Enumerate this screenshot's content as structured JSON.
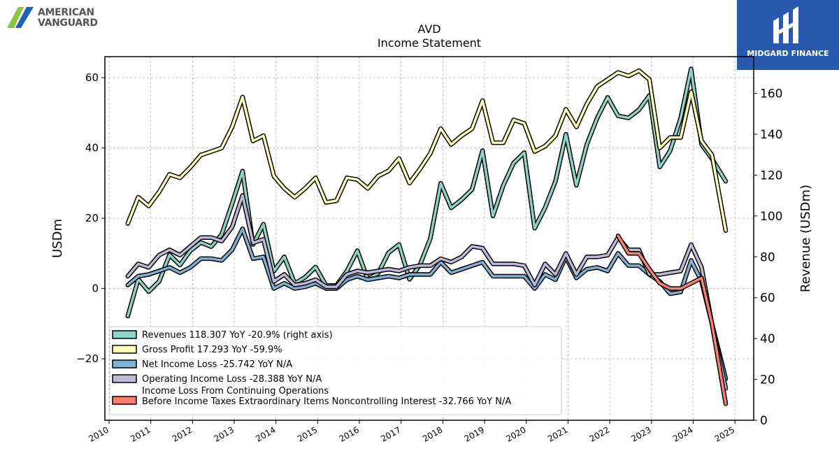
{
  "brand_left": {
    "line1": "AMERICAN",
    "line2": "VANGUARD"
  },
  "brand_right": {
    "name": "MIDGARD FINANCE"
  },
  "chart_data": {
    "type": "line",
    "title": "AVD",
    "subtitle": "Income Statement",
    "ylabel": "USDm",
    "ylabel_right": "Revenue (USDm)",
    "xlim": [
      2009.9,
      2025.45
    ],
    "ylim": [
      -37.5,
      66
    ],
    "ylim_right": [
      0,
      178
    ],
    "x_ticks": [
      "2010",
      "2011",
      "2012",
      "2013",
      "2014",
      "2015",
      "2016",
      "2017",
      "2018",
      "2019",
      "2020",
      "2021",
      "2022",
      "2023",
      "2024",
      "2025"
    ],
    "y_ticks": [
      -20,
      0,
      20,
      40,
      60
    ],
    "y_ticks_right": [
      0,
      20,
      40,
      60,
      80,
      100,
      120,
      140,
      160
    ],
    "grid": true,
    "legend_position": "lower-left",
    "series": [
      {
        "name": "Revenues  118.307 YoY -20.9% (right axis)",
        "axis": "right",
        "color": "#8dd3c7",
        "x": [
          2010.45,
          2010.7,
          2010.95,
          2011.2,
          2011.45,
          2011.7,
          2011.95,
          2012.2,
          2012.45,
          2012.7,
          2012.95,
          2013.2,
          2013.45,
          2013.7,
          2013.95,
          2014.2,
          2014.45,
          2014.7,
          2014.95,
          2015.2,
          2015.45,
          2015.7,
          2015.95,
          2016.2,
          2016.45,
          2016.7,
          2016.95,
          2017.2,
          2017.45,
          2017.7,
          2017.95,
          2018.2,
          2018.45,
          2018.7,
          2018.95,
          2019.2,
          2019.45,
          2019.7,
          2019.95,
          2020.2,
          2020.45,
          2020.7,
          2020.95,
          2021.2,
          2021.45,
          2021.7,
          2021.95,
          2022.2,
          2022.45,
          2022.7,
          2022.95,
          2023.2,
          2023.45,
          2023.7,
          2023.95,
          2024.2,
          2024.45,
          2024.78
        ],
        "values": [
          51,
          69,
          63,
          68,
          81,
          76,
          83,
          87,
          85,
          91,
          106,
          122,
          86,
          96,
          73,
          80,
          67,
          70,
          75,
          66,
          66,
          73,
          83,
          69,
          72,
          82,
          86,
          69,
          76,
          89,
          116,
          104,
          108,
          113,
          132,
          100,
          115,
          126,
          131,
          94,
          104,
          117,
          140,
          115,
          135,
          148,
          158,
          149,
          148,
          152,
          159,
          124,
          132,
          148,
          172,
          135,
          128,
          117
        ]
      },
      {
        "name": "Gross Profit  17.293 YoY -59.9%",
        "axis": "left",
        "color": "#ffffb3",
        "x": [
          2010.45,
          2010.7,
          2010.95,
          2011.2,
          2011.45,
          2011.7,
          2011.95,
          2012.2,
          2012.45,
          2012.7,
          2012.95,
          2013.2,
          2013.45,
          2013.7,
          2013.95,
          2014.2,
          2014.45,
          2014.7,
          2014.95,
          2015.2,
          2015.45,
          2015.7,
          2015.95,
          2016.2,
          2016.45,
          2016.7,
          2016.95,
          2017.2,
          2017.45,
          2017.7,
          2017.95,
          2018.2,
          2018.45,
          2018.7,
          2018.95,
          2019.2,
          2019.45,
          2019.7,
          2019.95,
          2020.2,
          2020.45,
          2020.7,
          2020.95,
          2021.2,
          2021.45,
          2021.7,
          2021.95,
          2022.2,
          2022.45,
          2022.7,
          2022.95,
          2023.2,
          2023.45,
          2023.7,
          2023.95,
          2024.2,
          2024.45,
          2024.78
        ],
        "values": [
          18.5,
          26,
          23.5,
          27.5,
          32.5,
          31.5,
          34.5,
          38,
          39,
          40,
          46,
          54.5,
          42,
          43.5,
          32,
          28.5,
          26,
          28.5,
          31.5,
          24.5,
          25,
          31.5,
          31,
          28.5,
          32,
          33.5,
          37,
          30,
          34,
          38.5,
          45.5,
          41,
          43.5,
          45.5,
          53.5,
          41.5,
          41.5,
          48,
          47,
          39,
          40.5,
          43.5,
          51,
          46,
          52.5,
          57.5,
          59.5,
          61.5,
          60.5,
          62,
          59.5,
          40,
          43,
          43,
          56,
          42,
          38,
          16.5
        ]
      },
      {
        "name": "Net Income Loss  -25.742 YoY N/A",
        "axis": "left",
        "color": "#80b1d3",
        "x": [
          2010.45,
          2010.7,
          2010.95,
          2011.2,
          2011.45,
          2011.7,
          2011.95,
          2012.2,
          2012.45,
          2012.7,
          2012.95,
          2013.2,
          2013.45,
          2013.7,
          2013.95,
          2014.2,
          2014.45,
          2014.7,
          2014.95,
          2015.2,
          2015.45,
          2015.7,
          2015.95,
          2016.2,
          2016.45,
          2016.7,
          2016.95,
          2017.2,
          2017.45,
          2017.7,
          2017.95,
          2018.2,
          2018.45,
          2018.7,
          2018.95,
          2019.2,
          2019.45,
          2019.7,
          2019.95,
          2020.2,
          2020.45,
          2020.7,
          2020.95,
          2021.2,
          2021.45,
          2021.7,
          2021.95,
          2022.2,
          2022.45,
          2022.7,
          2022.95,
          2023.2,
          2023.45,
          2023.7,
          2023.95,
          2024.2,
          2024.45,
          2024.78
        ],
        "values": [
          1,
          3.5,
          4,
          5,
          6,
          4.5,
          6,
          8.5,
          8.5,
          8,
          11,
          17,
          8.5,
          9,
          0,
          1.5,
          0,
          0.5,
          1.5,
          0,
          0,
          2.5,
          3.5,
          2.5,
          3,
          3.5,
          3,
          4,
          4,
          4,
          7.5,
          4.5,
          5.5,
          6.5,
          7.5,
          3.5,
          3.5,
          3.5,
          3.5,
          0,
          4,
          2.5,
          9,
          3,
          5.5,
          6,
          5,
          10,
          6.5,
          6.5,
          4,
          2,
          -1.5,
          -1,
          8,
          2,
          -10,
          -25.7
        ]
      },
      {
        "name": "Operating Income Loss  -28.388 YoY N/A",
        "axis": "left",
        "color": "#bebada",
        "x": [
          2010.45,
          2010.7,
          2010.95,
          2011.2,
          2011.45,
          2011.7,
          2011.95,
          2012.2,
          2012.45,
          2012.7,
          2012.95,
          2013.2,
          2013.45,
          2013.7,
          2013.95,
          2014.2,
          2014.45,
          2014.7,
          2014.95,
          2015.2,
          2015.45,
          2015.7,
          2015.95,
          2016.2,
          2016.45,
          2016.7,
          2016.95,
          2017.2,
          2017.45,
          2017.7,
          2017.95,
          2018.2,
          2018.45,
          2018.7,
          2018.95,
          2019.2,
          2019.45,
          2019.7,
          2019.95,
          2020.2,
          2020.45,
          2020.7,
          2020.95,
          2021.2,
          2021.45,
          2021.7,
          2021.95,
          2022.2,
          2022.45,
          2022.7,
          2022.95,
          2023.2,
          2023.45,
          2023.7,
          2023.95,
          2024.2,
          2024.45,
          2024.78
        ],
        "values": [
          3.5,
          7,
          6,
          9.5,
          11,
          9.5,
          12,
          14.5,
          14.5,
          13.5,
          17.5,
          26.5,
          13,
          14,
          2,
          4,
          1,
          1.5,
          2.5,
          0.5,
          0.5,
          4,
          5,
          4.5,
          5,
          5.5,
          5,
          6,
          6.5,
          6.5,
          8.5,
          7.5,
          9,
          12,
          11.5,
          7,
          7,
          7,
          6.5,
          1,
          7,
          4,
          10,
          4,
          9,
          9,
          9.5,
          14.5,
          11,
          11,
          4,
          4,
          4.5,
          5,
          12.5,
          6,
          -10,
          -28.4
        ]
      },
      {
        "name": "Income Loss From Continuing Operations\nBefore Income Taxes Extraordinary Items Noncontrolling Interest  -32.766 YoY N/A",
        "axis": "left",
        "color": "#fb8072",
        "x": [
          2022.2,
          2022.45,
          2022.7,
          2022.95,
          2023.2,
          2023.45,
          2023.7,
          2023.95,
          2024.2,
          2024.45,
          2024.78
        ],
        "values": [
          15,
          10,
          10,
          5.5,
          1.5,
          0,
          0,
          1.5,
          3,
          -10,
          -32.8
        ]
      }
    ]
  }
}
